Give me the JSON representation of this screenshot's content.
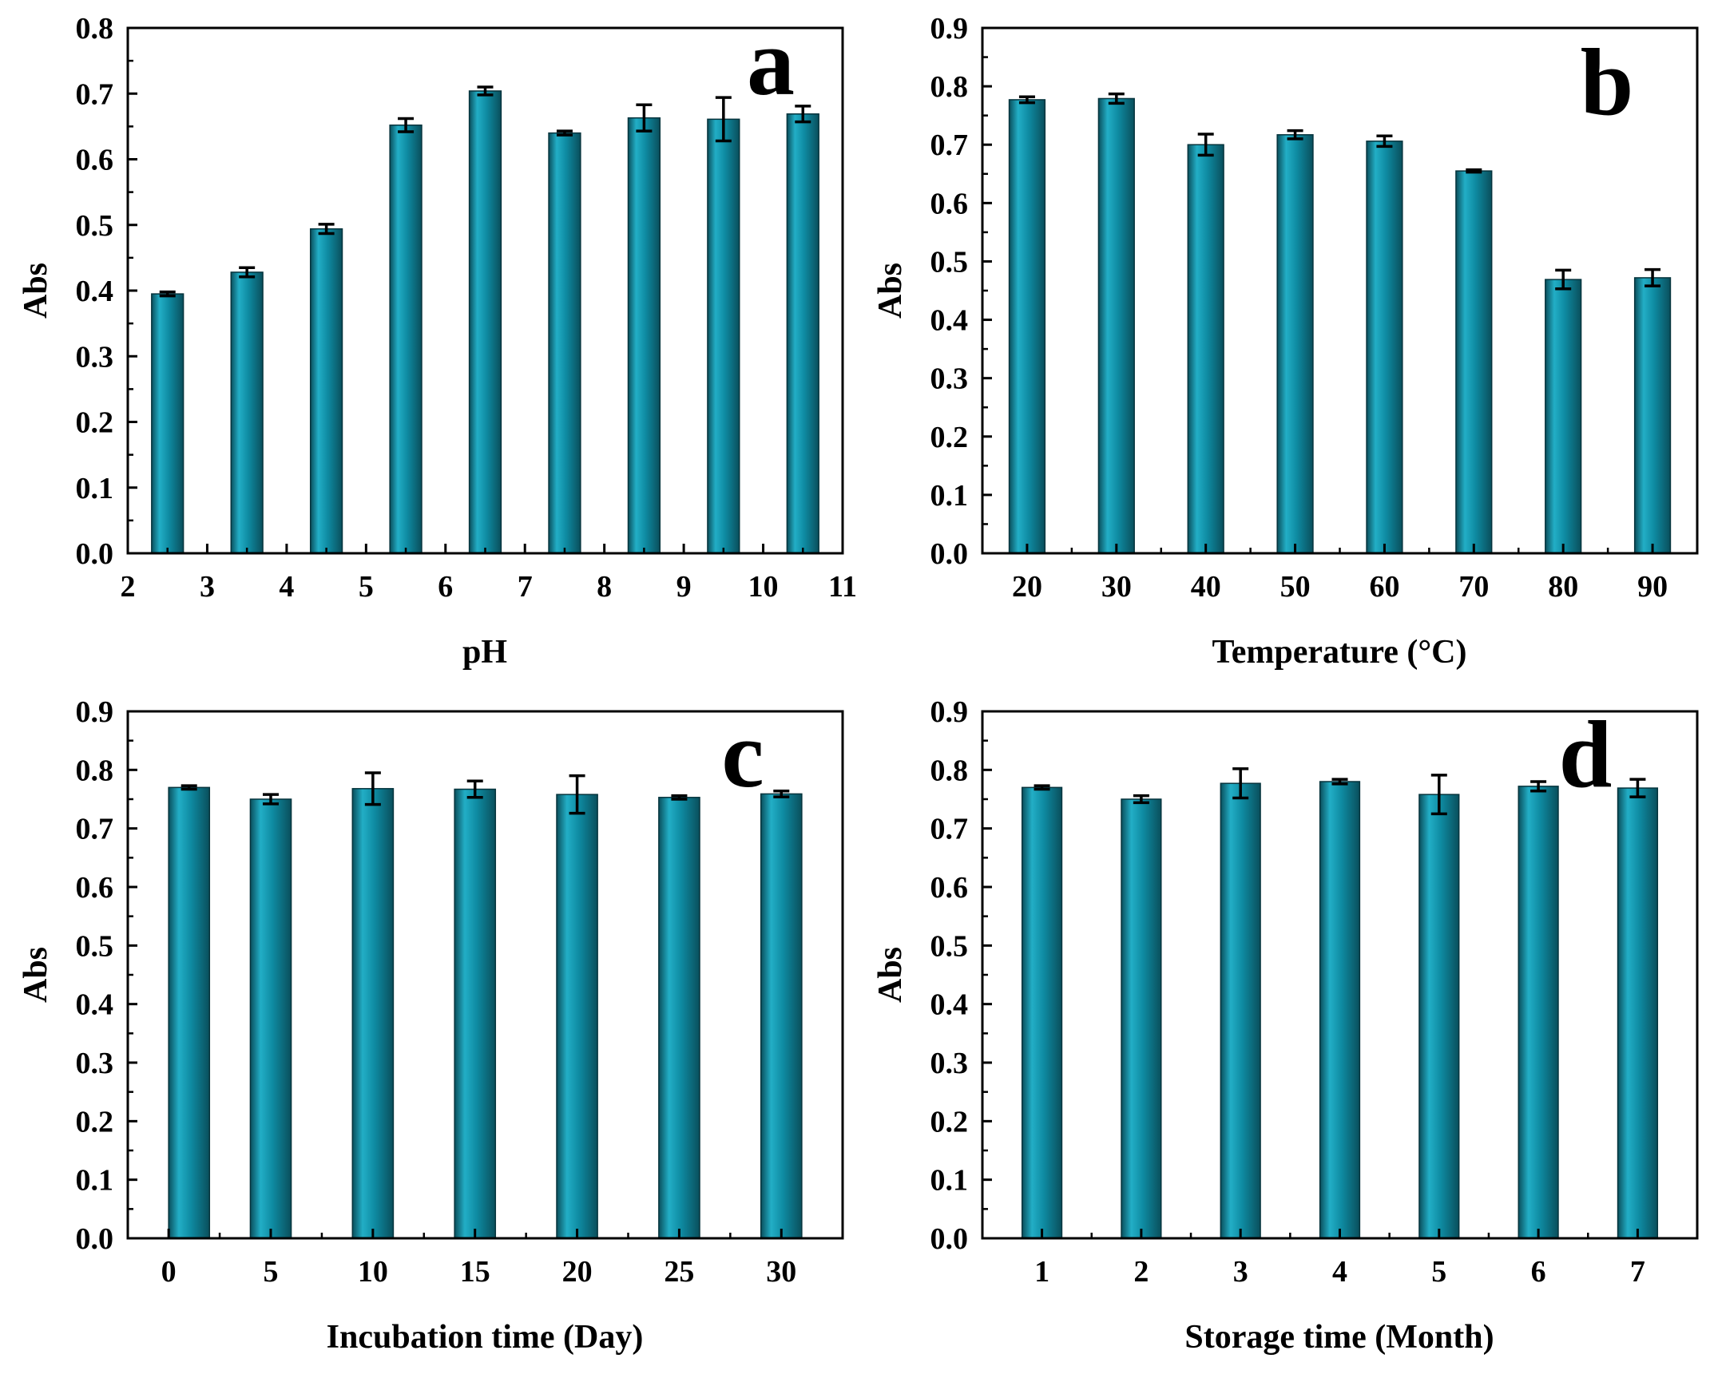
{
  "colors": {
    "bar": "#0e8aa1",
    "bar_dark": "#0a4f5c",
    "bar_light": "#22aec6",
    "axis": "#000000",
    "error": "#000000"
  },
  "chart_data": [
    {
      "id": "a",
      "type": "bar",
      "panel_label": "a",
      "xlabel": "pH",
      "ylabel": "Abs",
      "xlim": [
        2,
        11
      ],
      "ylim": [
        0,
        0.8
      ],
      "xticks": [
        "2",
        "3",
        "4",
        "5",
        "6",
        "7",
        "8",
        "9",
        "10",
        "11"
      ],
      "yticks": [
        "0.0",
        "0.1",
        "0.2",
        "0.3",
        "0.4",
        "0.5",
        "0.6",
        "0.7",
        "0.8"
      ],
      "bar_width": 0.4,
      "x": [
        2.5,
        3.5,
        4.5,
        5.5,
        6.5,
        7.5,
        8.5,
        9.5,
        10.5
      ],
      "values": [
        0.395,
        0.428,
        0.494,
        0.652,
        0.704,
        0.64,
        0.663,
        0.661,
        0.669
      ],
      "errors": [
        0.003,
        0.007,
        0.007,
        0.01,
        0.006,
        0.003,
        0.02,
        0.033,
        0.012
      ]
    },
    {
      "id": "b",
      "type": "bar",
      "panel_label": "b",
      "xlabel": "Temperature (°C)",
      "ylabel": "Abs",
      "xlim": [
        15,
        95
      ],
      "ylim": [
        0,
        0.9
      ],
      "xticks": [
        "20",
        "30",
        "40",
        "50",
        "60",
        "70",
        "80",
        "90"
      ],
      "yticks": [
        "0.0",
        "0.1",
        "0.2",
        "0.3",
        "0.4",
        "0.5",
        "0.6",
        "0.7",
        "0.8",
        "0.9"
      ],
      "bar_width": 4,
      "x": [
        20,
        30,
        40,
        50,
        60,
        70,
        80,
        90
      ],
      "values": [
        0.777,
        0.779,
        0.7,
        0.717,
        0.706,
        0.655,
        0.469,
        0.472
      ],
      "errors": [
        0.005,
        0.008,
        0.018,
        0.007,
        0.009,
        0.002,
        0.016,
        0.014
      ]
    },
    {
      "id": "c",
      "type": "bar",
      "panel_label": "c",
      "xlabel": "Incubation time (Day)",
      "ylabel": "Abs",
      "xlim": [
        -2,
        33
      ],
      "ylim": [
        0,
        0.9
      ],
      "xticks": [
        "0",
        "5",
        "10",
        "15",
        "20",
        "25",
        "30"
      ],
      "yticks": [
        "0.0",
        "0.1",
        "0.2",
        "0.3",
        "0.4",
        "0.5",
        "0.6",
        "0.7",
        "0.8",
        "0.9"
      ],
      "bar_width": 2,
      "x": [
        1,
        5,
        10,
        15,
        20,
        25,
        30
      ],
      "values": [
        0.77,
        0.75,
        0.768,
        0.767,
        0.758,
        0.753,
        0.759
      ],
      "errors": [
        0.003,
        0.008,
        0.027,
        0.014,
        0.032,
        0.003,
        0.005
      ]
    },
    {
      "id": "d",
      "type": "bar",
      "panel_label": "d",
      "xlabel": "Storage time (Month)",
      "ylabel": "Abs",
      "xlim": [
        0.4,
        7.6
      ],
      "ylim": [
        0,
        0.9
      ],
      "xticks": [
        "1",
        "2",
        "3",
        "4",
        "5",
        "6",
        "7"
      ],
      "yticks": [
        "0.0",
        "0.1",
        "0.2",
        "0.3",
        "0.4",
        "0.5",
        "0.6",
        "0.7",
        "0.8",
        "0.9"
      ],
      "bar_width": 0.4,
      "x": [
        1,
        2,
        3,
        4,
        5,
        6,
        7
      ],
      "values": [
        0.77,
        0.75,
        0.777,
        0.78,
        0.758,
        0.772,
        0.769
      ],
      "errors": [
        0.003,
        0.006,
        0.025,
        0.004,
        0.033,
        0.008,
        0.015
      ]
    }
  ]
}
